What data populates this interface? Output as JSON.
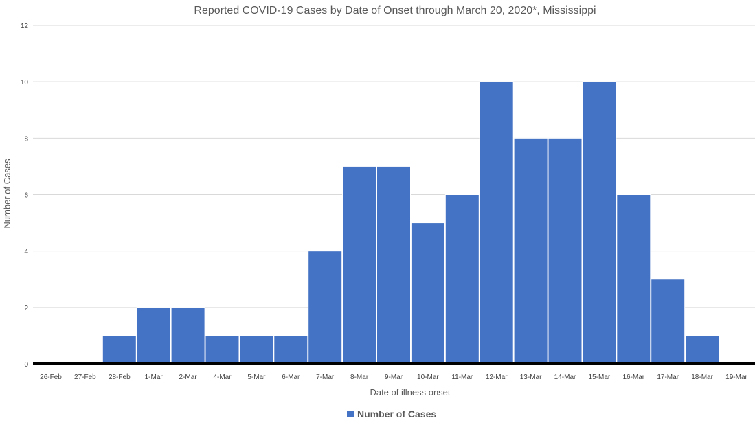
{
  "chart_data": {
    "type": "bar",
    "title": "Reported COVID-19 Cases by Date of Onset through March 20, 2020*, Mississippi",
    "xlabel": "Date of illness onset",
    "ylabel": "Number of Cases",
    "categories": [
      "26-Feb",
      "27-Feb",
      "28-Feb",
      "1-Mar",
      "2-Mar",
      "4-Mar",
      "5-Mar",
      "6-Mar",
      "7-Mar",
      "8-Mar",
      "9-Mar",
      "10-Mar",
      "11-Mar",
      "12-Mar",
      "13-Mar",
      "14-Mar",
      "15-Mar",
      "16-Mar",
      "17-Mar",
      "18-Mar",
      "19-Mar"
    ],
    "series": [
      {
        "name": "Number of Cases",
        "color": "#4472C4",
        "values": [
          0,
          0,
          1,
          2,
          2,
          1,
          1,
          1,
          4,
          7,
          7,
          5,
          6,
          10,
          8,
          8,
          10,
          6,
          3,
          1,
          0
        ]
      }
    ],
    "ylim": [
      0,
      12
    ],
    "yticks": [
      0,
      2,
      4,
      6,
      8,
      10,
      12
    ],
    "grid": true,
    "legend_position": "bottom"
  }
}
